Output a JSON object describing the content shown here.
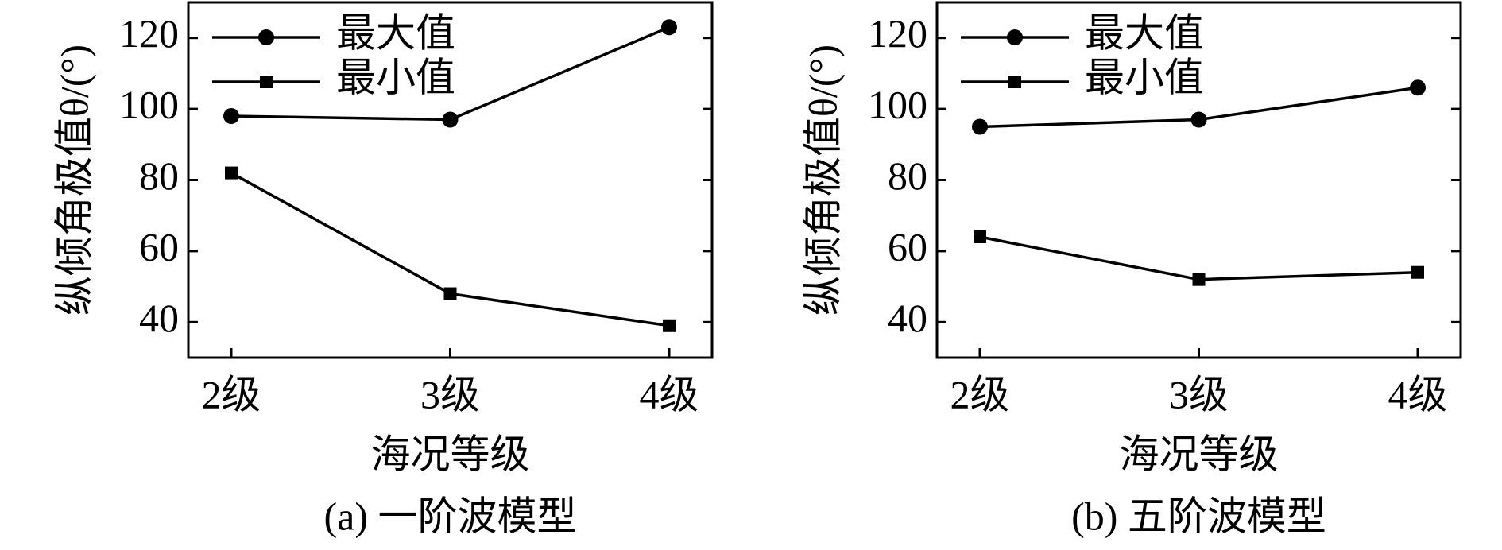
{
  "chart_data": [
    {
      "type": "line",
      "caption": "(a) 一阶波模型",
      "x_label": "海况等级",
      "y_label": "纵倾角极值θ/(°)",
      "categories": [
        "2级",
        "3级",
        "4级"
      ],
      "series": [
        {
          "name": "最大值",
          "color": "#000000",
          "marker": "circle",
          "values": [
            98,
            97,
            123
          ]
        },
        {
          "name": "最小值",
          "color": "#000000",
          "marker": "square",
          "values": [
            82,
            48,
            39
          ]
        }
      ],
      "ylim": [
        30,
        130
      ],
      "yticks": [
        40,
        60,
        80,
        100,
        120
      ],
      "legend": "upper left",
      "grid": false
    },
    {
      "type": "line",
      "caption": "(b) 五阶波模型",
      "x_label": "海况等级",
      "y_label": "纵倾角极值θ/(°)",
      "categories": [
        "2级",
        "3级",
        "4级"
      ],
      "series": [
        {
          "name": "最大值",
          "color": "#000000",
          "marker": "circle",
          "values": [
            95,
            97,
            106
          ]
        },
        {
          "name": "最小值",
          "color": "#000000",
          "marker": "square",
          "values": [
            64,
            52,
            54
          ]
        }
      ],
      "ylim": [
        30,
        130
      ],
      "yticks": [
        40,
        60,
        80,
        100,
        120
      ],
      "legend": "upper left",
      "grid": false
    }
  ]
}
